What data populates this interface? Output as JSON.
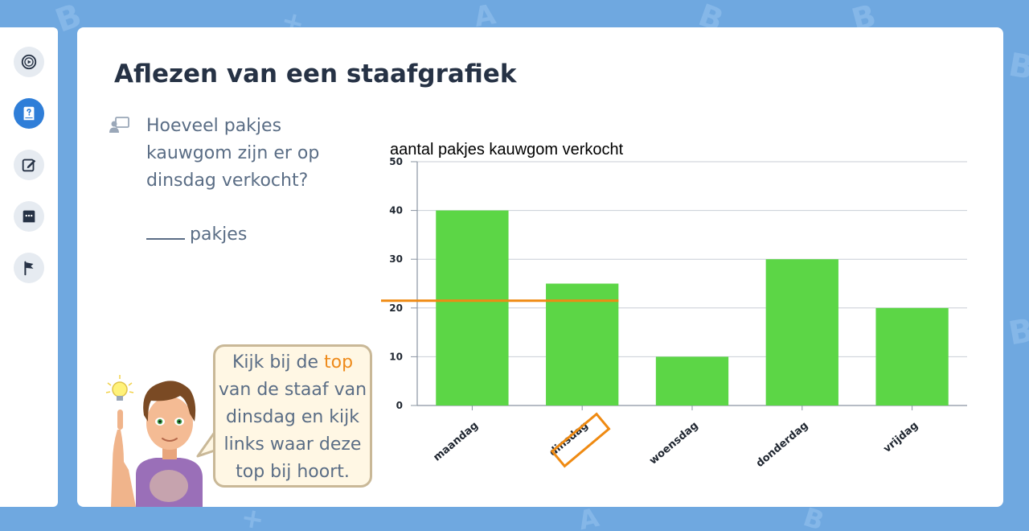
{
  "sidebar": {
    "items": [
      {
        "name": "video-icon",
        "active": false
      },
      {
        "name": "question-book-icon",
        "active": true
      },
      {
        "name": "edit-icon",
        "active": false
      },
      {
        "name": "chat-icon",
        "active": false
      },
      {
        "name": "flag-icon",
        "active": false
      }
    ]
  },
  "lesson": {
    "title": "Aflezen van een staafgrafiek",
    "question_line1": "Hoeveel pakjes",
    "question_line2": "kauwgom zijn er op",
    "question_line3": "dinsdag verkocht?",
    "answer_blank": "",
    "answer_unit": "pakjes"
  },
  "hint": {
    "line1_before": "Kijk bij de ",
    "line1_highlight": "top",
    "line2": "van de staaf van",
    "line3": "dinsdag en kijk",
    "line4": "links waar deze",
    "line5": "top bij hoort."
  },
  "chart_data": {
    "type": "bar",
    "title": "aantal pakjes kauwgom verkocht",
    "categories": [
      "maandag",
      "dinsdag",
      "woensdag",
      "donderdag",
      "vrijdag"
    ],
    "values": [
      40,
      25,
      10,
      30,
      20
    ],
    "ylim": [
      0,
      50
    ],
    "yticks": [
      "0",
      "10",
      "20",
      "30",
      "40",
      "50"
    ],
    "grid": true,
    "bar_color": "#5cd646",
    "highlight_category": "dinsdag",
    "reference_line_value": 21.5,
    "highlight_color": "#ef8a12"
  },
  "colors": {
    "background": "#6fa8e0",
    "title": "#263245",
    "text": "#5a6d85",
    "accent": "#2f7ed8",
    "hint_highlight": "#ee8a1a"
  }
}
